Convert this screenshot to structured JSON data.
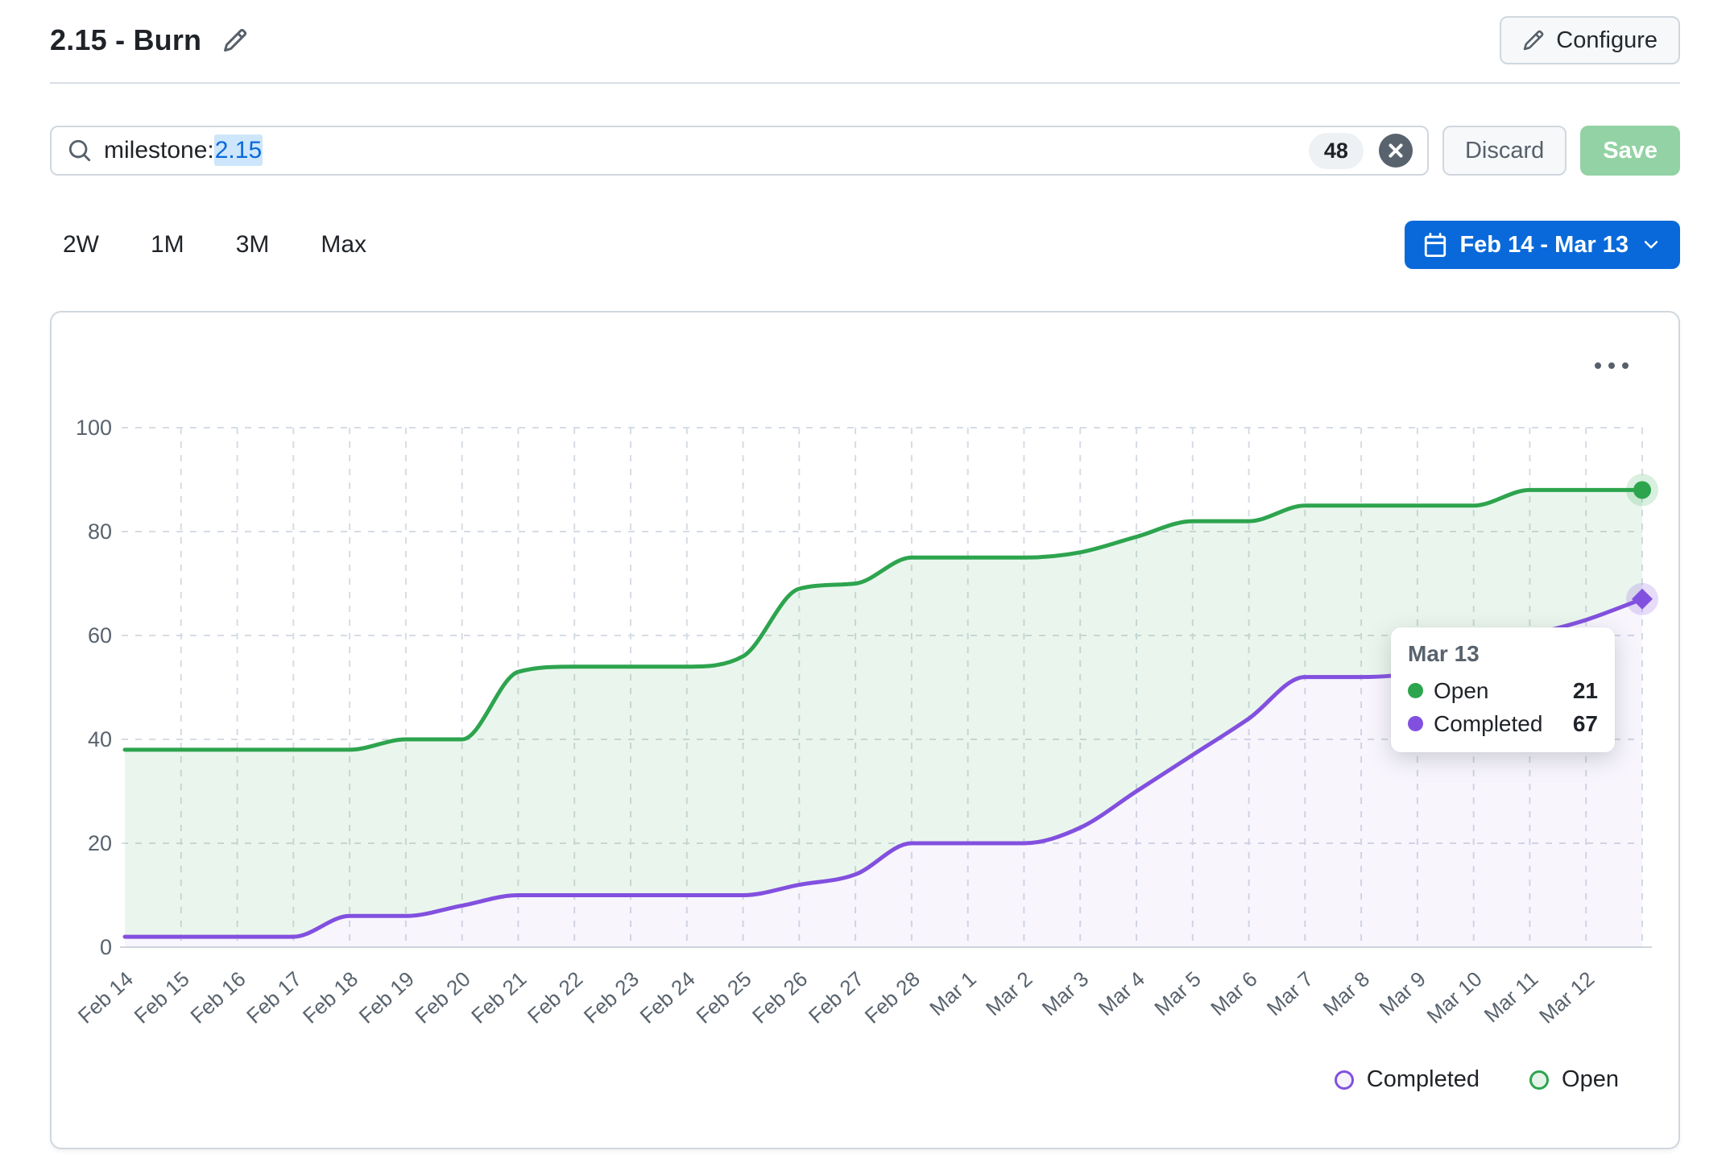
{
  "header": {
    "title": "2.15 - Burn",
    "configure_label": "Configure"
  },
  "filter": {
    "query_field": "milestone:",
    "query_value": "2.15",
    "count_badge": "48",
    "discard_label": "Discard",
    "save_label": "Save"
  },
  "period": {
    "options": [
      "2W",
      "1M",
      "3M",
      "Max"
    ],
    "range_label": "Feb 14 - Mar 13"
  },
  "colors": {
    "accent_blue": "#0969da",
    "open_green": "#2da44e",
    "completed_purple": "#8250df",
    "grid": "#d6dce4",
    "axis_text": "#59636e"
  },
  "chart_data": {
    "type": "area",
    "stacked": true,
    "title": "",
    "xlabel": "",
    "ylabel": "",
    "ylim": [
      0,
      100
    ],
    "yticks": [
      0,
      20,
      40,
      60,
      80,
      100
    ],
    "grid": "dashed",
    "legend": [
      "Completed",
      "Open"
    ],
    "legend_position": "bottom-right",
    "categories": [
      "Feb 14",
      "Feb 15",
      "Feb 16",
      "Feb 17",
      "Feb 18",
      "Feb 19",
      "Feb 20",
      "Feb 21",
      "Feb 22",
      "Feb 23",
      "Feb 24",
      "Feb 25",
      "Feb 26",
      "Feb 27",
      "Feb 28",
      "Mar 1",
      "Mar 2",
      "Mar 3",
      "Mar 4",
      "Mar 5",
      "Mar 6",
      "Mar 7",
      "Mar 8",
      "Mar 9",
      "Mar 10",
      "Mar 11",
      "Mar 12",
      "Mar 13"
    ],
    "series": [
      {
        "name": "Completed",
        "color": "#8250df",
        "values": [
          2,
          2,
          2,
          2,
          6,
          6,
          8,
          10,
          10,
          10,
          10,
          10,
          12,
          14,
          20,
          20,
          20,
          23,
          30,
          37,
          44,
          52,
          52,
          53,
          57,
          60,
          63,
          67
        ]
      },
      {
        "name": "Open",
        "color": "#2da44e",
        "values": [
          36,
          36,
          36,
          36,
          32,
          34,
          32,
          43,
          44,
          44,
          44,
          46,
          57,
          56,
          55,
          55,
          55,
          53,
          49,
          45,
          38,
          33,
          33,
          32,
          28,
          28,
          25,
          21
        ]
      }
    ],
    "tooltip": {
      "date": "Mar 13",
      "rows": [
        {
          "name": "Open",
          "value": "21"
        },
        {
          "name": "Completed",
          "value": "67"
        }
      ]
    }
  }
}
